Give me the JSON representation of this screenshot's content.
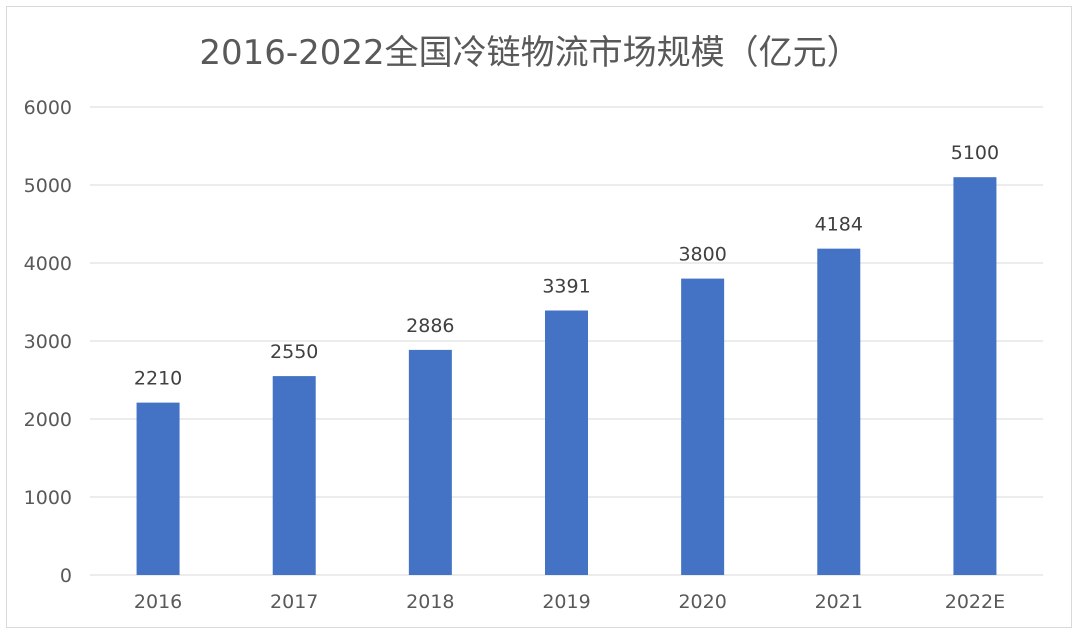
{
  "chart_data": {
    "type": "bar",
    "title": "2016-2022全国冷链物流市场规模（亿元）",
    "categories": [
      "2016",
      "2017",
      "2018",
      "2019",
      "2020",
      "2021",
      "2022E"
    ],
    "values": [
      2210,
      2550,
      2886,
      3391,
      3800,
      4184,
      5100
    ],
    "data_labels": [
      "2210",
      "2550",
      "2886",
      "3391",
      "3800",
      "4184",
      "5100"
    ],
    "ylim": [
      0,
      6000
    ],
    "yticks": [
      0,
      1000,
      2000,
      3000,
      4000,
      5000,
      6000
    ],
    "grid": true,
    "legend": "none",
    "bar_color": "#4472c4"
  }
}
